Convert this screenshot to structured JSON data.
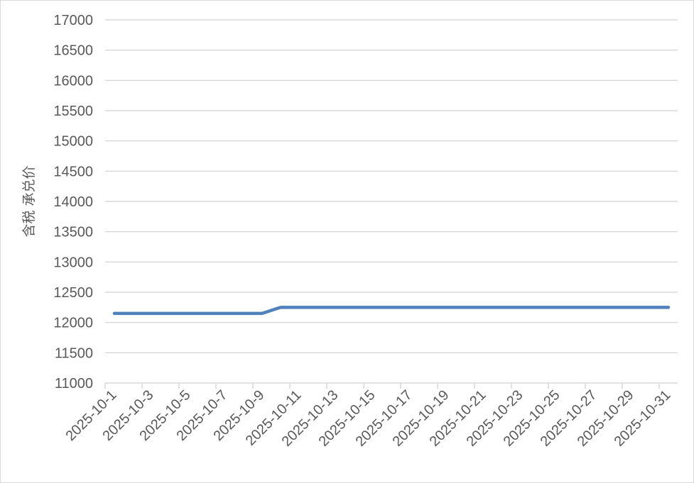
{
  "chart_data": {
    "type": "line",
    "title": "",
    "xlabel": "",
    "ylabel": "含税 承兑价",
    "ylim": [
      11000,
      17000
    ],
    "ytick_step": 500,
    "grid": true,
    "legend": "none",
    "line_color": "#4f81bd",
    "categories": [
      "2025-10-1",
      "2025-10-2",
      "2025-10-3",
      "2025-10-4",
      "2025-10-5",
      "2025-10-6",
      "2025-10-7",
      "2025-10-8",
      "2025-10-9",
      "2025-10-10",
      "2025-10-11",
      "2025-10-12",
      "2025-10-13",
      "2025-10-14",
      "2025-10-15",
      "2025-10-16",
      "2025-10-17",
      "2025-10-18",
      "2025-10-19",
      "2025-10-20",
      "2025-10-21",
      "2025-10-22",
      "2025-10-23",
      "2025-10-24",
      "2025-10-25",
      "2025-10-26",
      "2025-10-27",
      "2025-10-28",
      "2025-10-29",
      "2025-10-30",
      "2025-10-31"
    ],
    "x_tick_labels": [
      "2025-10-1",
      "2025-10-3",
      "2025-10-5",
      "2025-10-7",
      "2025-10-9",
      "2025-10-11",
      "2025-10-13",
      "2025-10-15",
      "2025-10-17",
      "2025-10-19",
      "2025-10-21",
      "2025-10-23",
      "2025-10-25",
      "2025-10-27",
      "2025-10-29",
      "2025-10-31"
    ],
    "series": [
      {
        "values": [
          12150,
          12150,
          12150,
          12150,
          12150,
          12150,
          12150,
          12150,
          12150,
          12250,
          12250,
          12250,
          12250,
          12250,
          12250,
          12250,
          12250,
          12250,
          12250,
          12250,
          12250,
          12250,
          12250,
          12250,
          12250,
          12250,
          12250,
          12250,
          12250,
          12250,
          12250
        ]
      }
    ]
  }
}
